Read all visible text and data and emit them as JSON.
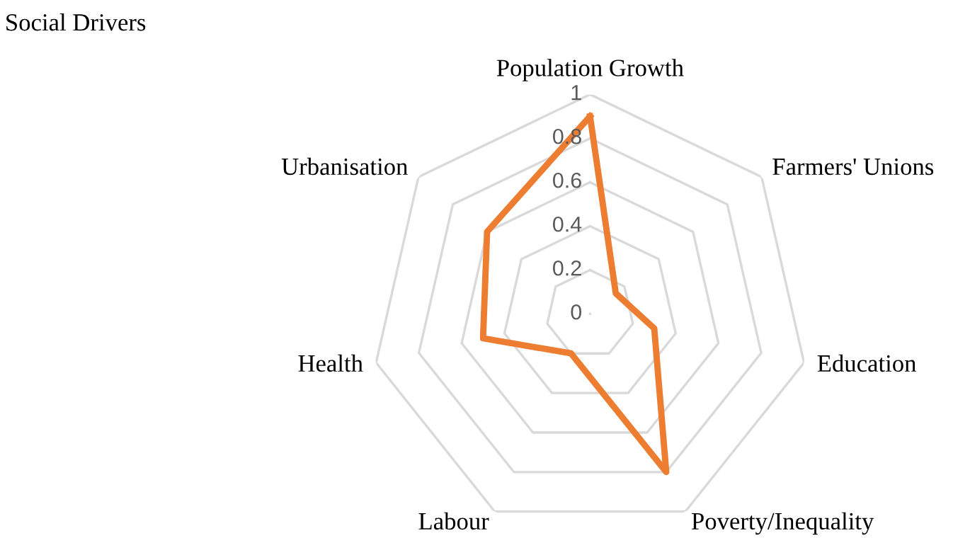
{
  "chart_data": {
    "type": "radar",
    "title": "Social Drivers",
    "categories": [
      "Population Growth",
      "Farmers' Unions",
      "Education",
      "Poverty/Inequality",
      "Labour",
      "Health",
      "Urbanisation"
    ],
    "series": [
      {
        "color": "#ed7d31",
        "values": [
          0.9,
          0.15,
          0.3,
          0.8,
          0.2,
          0.5,
          0.6
        ]
      }
    ],
    "ylim": [
      0,
      1
    ],
    "yticks": [
      0,
      0.2,
      0.4,
      0.6,
      0.8,
      1
    ],
    "grid": true,
    "legend": false
  }
}
